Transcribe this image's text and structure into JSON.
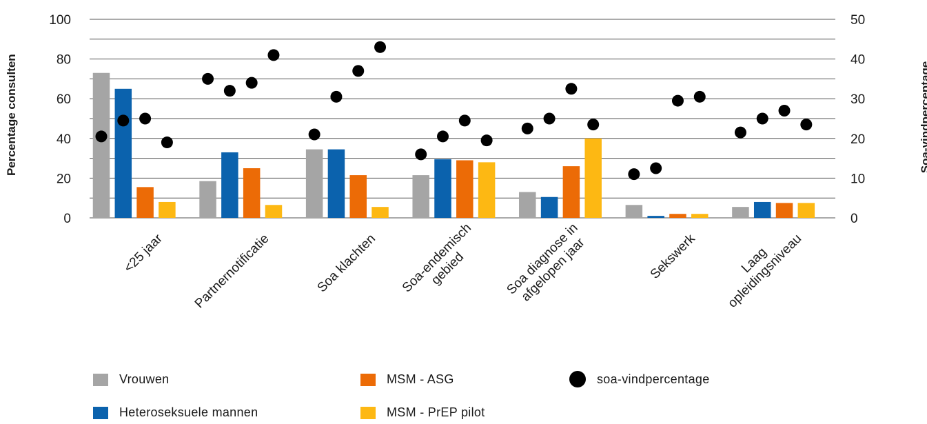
{
  "chart_data": {
    "type": "bar",
    "ylabel": "Percentage consulten",
    "y2label": "Soa-vindpercentage",
    "ylim": [
      0,
      100
    ],
    "y2lim": [
      0,
      50
    ],
    "yticks": [
      "0",
      "20",
      "40",
      "60",
      "80",
      "100"
    ],
    "y2ticks": [
      "0",
      "10",
      "20",
      "30",
      "40",
      "50"
    ],
    "grid": true,
    "legend_position": "bottom",
    "categories": [
      "<25 jaar",
      "Partnernotificatie",
      "Soa klachten",
      "Soa-endemisch gebied",
      "Soa diagnose in afgelopen jaar",
      "Sekswerk",
      "Laag opleidingsniveau"
    ],
    "category_lines": [
      [
        "<25 jaar"
      ],
      [
        "Partnernotificatie"
      ],
      [
        "Soa klachten"
      ],
      [
        "Soa-endemisch",
        "gebied"
      ],
      [
        "Soa diagnose in",
        "afgelopen jaar"
      ],
      [
        "Sekswerk"
      ],
      [
        "Laag",
        "opleidingsniveau"
      ]
    ],
    "series": [
      {
        "name": "Vrouwen",
        "color": "#a5a5a5",
        "values": [
          73,
          18.5,
          34.5,
          21.5,
          13,
          6.5,
          5.5
        ]
      },
      {
        "name": "Heteroseksuele mannen",
        "color": "#0b62ad",
        "values": [
          65,
          33,
          34.5,
          29.5,
          10.5,
          1,
          8
        ]
      },
      {
        "name": "MSM - ASG",
        "color": "#ec6b06",
        "values": [
          15.5,
          25,
          21.5,
          29,
          26,
          2,
          7.5
        ]
      },
      {
        "name": "MSM - PrEP pilot",
        "color": "#fdb813",
        "values": [
          8,
          6.5,
          5.5,
          28,
          40,
          2,
          7.5
        ]
      }
    ],
    "scatter": {
      "name": "soa-vindpercentage",
      "color": "#000000",
      "axis": "right",
      "values": [
        [
          20.5,
          24.5,
          25,
          19
        ],
        [
          35,
          32,
          34,
          41
        ],
        [
          21,
          30.5,
          37,
          43
        ],
        [
          16,
          20.5,
          24.5,
          19.5
        ],
        [
          22.5,
          25,
          32.5,
          23.5
        ],
        [
          11,
          12.5,
          29.5,
          30.5
        ],
        [
          21.5,
          25,
          27,
          23.5
        ]
      ]
    }
  },
  "legend": {
    "vrouwen": "Vrouwen",
    "hetero": "Heteroseksuele mannen",
    "msm_asg": "MSM - ASG",
    "msm_prep": "MSM - PrEP pilot",
    "vindpercentage": "soa-vindpercentage"
  },
  "colors": {
    "vrouwen": "#a5a5a5",
    "hetero": "#0b62ad",
    "msm_asg": "#ec6b06",
    "msm_prep": "#fdb813",
    "dot": "#000000"
  }
}
